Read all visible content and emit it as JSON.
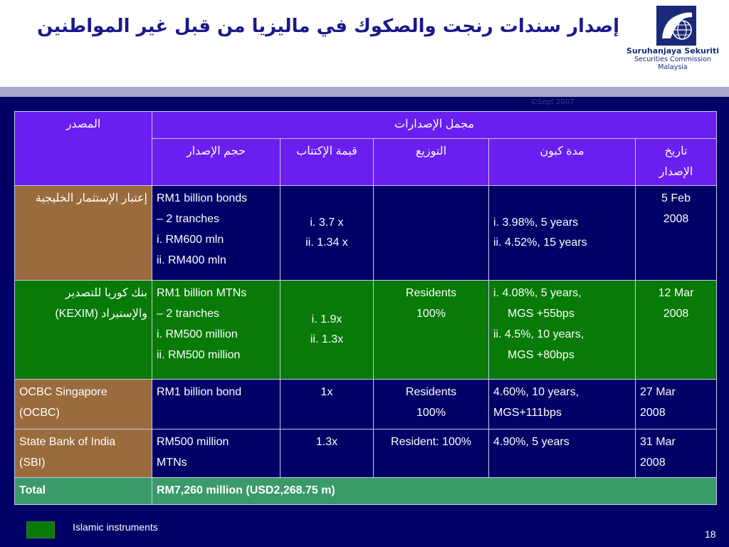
{
  "slide": {
    "title": "إصدار سندات رنجت والصكوك في ماليزيا من قبل غير المواطنين",
    "copyright": "©Sept 2007",
    "page_number": "18"
  },
  "logo": {
    "line1": "Suruhanjaya Sekuriti",
    "line2": "Securities Commission",
    "line3": "Malaysia"
  },
  "table": {
    "header": {
      "issuer": "المصدر",
      "total_issuance": "مجمل الإصدارات",
      "size": "حجم الإصدار",
      "subscription": "قيمة الإكتتاب",
      "distribution": "التوزيع",
      "coupon": "مدة كبون",
      "date_l1": "تاريخ",
      "date_l2": "الإصدار"
    },
    "rows": [
      {
        "issuer": "إعتبار الإستثمار الخليجية",
        "size": [
          "RM1 billion bonds",
          "– 2 tranches",
          "i.  RM600 mln",
          "ii. RM400 mln"
        ],
        "subscription": [
          "i.  3.7 x",
          "ii. 1.34 x"
        ],
        "distribution": [],
        "coupon": [
          "i.  3.98%, 5 years",
          "ii. 4.52%, 15 years"
        ],
        "date": [
          "5 Feb",
          "2008"
        ]
      },
      {
        "issuer_l1": "بنك كوريا للتصدير",
        "issuer_l2": "والإستيراد  (KEXIM)",
        "size": [
          "RM1 billion MTNs",
          "– 2 tranches",
          "i.  RM500 million",
          "ii. RM500 million"
        ],
        "subscription": [
          "i. 1.9x",
          "ii. 1.3x"
        ],
        "distribution": [
          "Residents",
          "100%"
        ],
        "coupon": [
          "i. 4.08%, 5 years,",
          "MGS +55bps",
          "ii. 4.5%, 10 years,",
          "MGS +80bps"
        ],
        "date": [
          "12 Mar",
          "2008"
        ]
      },
      {
        "issuer": [
          "OCBC Singapore",
          "(OCBC)"
        ],
        "size": [
          "RM1 billion bond"
        ],
        "subscription": [
          "1x"
        ],
        "distribution": [
          "Residents",
          "100%"
        ],
        "coupon": [
          "4.60%, 10 years,",
          "MGS+111bps"
        ],
        "date": [
          "27 Mar",
          "2008"
        ]
      },
      {
        "issuer": [
          "State Bank of India",
          "(SBI)"
        ],
        "size": [
          "RM500 million",
          "MTNs"
        ],
        "subscription": [
          "1.3x"
        ],
        "distribution": [
          "Resident: 100%"
        ],
        "coupon": [
          "4.90%, 5 years"
        ],
        "date": [
          "31 Mar",
          "2008"
        ]
      }
    ],
    "total": {
      "label": "Total",
      "value": "RM7,260 million (USD2,268.75 m)"
    }
  },
  "legend": {
    "label": "Islamic instruments",
    "color": "#087a08"
  },
  "colors": {
    "header_bg": "#6a1ef0",
    "navy": "#000066",
    "brown": "#9a6b3c",
    "green": "#087a08",
    "total_bg": "#3a9a6a",
    "band": "#a8a8d0"
  }
}
